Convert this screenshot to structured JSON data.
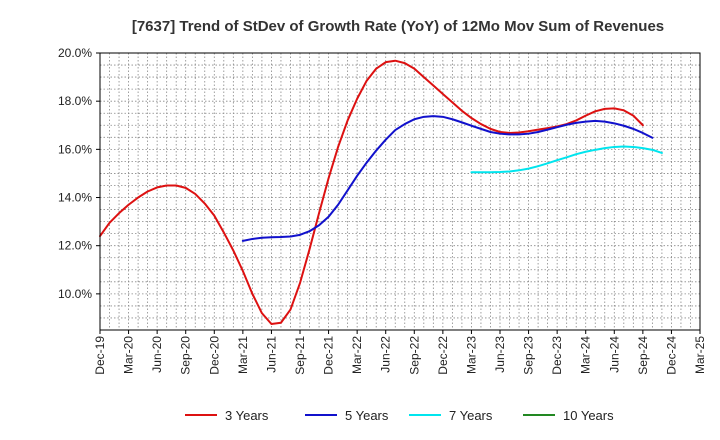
{
  "chart_data": {
    "type": "line",
    "title": "[7637]  Trend of StDev of Growth Rate (YoY) of 12Mo Mov Sum of Revenues",
    "xlabel": "",
    "ylabel": "",
    "ylim": [
      8.5,
      20.0
    ],
    "yticks": [
      10.0,
      12.0,
      14.0,
      16.0,
      18.0,
      20.0
    ],
    "ytick_labels": [
      "10.0%",
      "12.0%",
      "14.0%",
      "16.0%",
      "18.0%",
      "20.0%"
    ],
    "x_ticks": [
      "Dec-19",
      "Mar-20",
      "Jun-20",
      "Sep-20",
      "Dec-20",
      "Mar-21",
      "Jun-21",
      "Sep-21",
      "Dec-21",
      "Mar-22",
      "Jun-22",
      "Sep-22",
      "Dec-22",
      "Mar-23",
      "Jun-23",
      "Sep-23",
      "Dec-23",
      "Mar-24",
      "Jun-24",
      "Sep-24",
      "Dec-24",
      "Mar-25"
    ],
    "grid": true,
    "legend_position": "bottom",
    "series": [
      {
        "name": "3 Years",
        "color": "#dd1111",
        "start_index": 0,
        "values": [
          12.4,
          12.95,
          13.35,
          13.7,
          14.0,
          14.25,
          14.42,
          14.5,
          14.5,
          14.4,
          14.15,
          13.75,
          13.25,
          12.55,
          11.8,
          10.95,
          10.0,
          9.2,
          8.75,
          8.8,
          9.35,
          10.45,
          11.85,
          13.35,
          14.8,
          16.1,
          17.2,
          18.1,
          18.85,
          19.35,
          19.62,
          19.68,
          19.58,
          19.35,
          19.0,
          18.65,
          18.3,
          17.95,
          17.6,
          17.3,
          17.05,
          16.85,
          16.72,
          16.68,
          16.7,
          16.75,
          16.82,
          16.88,
          16.95,
          17.05,
          17.2,
          17.4,
          17.58,
          17.68,
          17.7,
          17.62,
          17.4,
          17.0
        ]
      },
      {
        "name": "5 Years",
        "color": "#1111cc",
        "start_index": 15,
        "values": [
          12.2,
          12.28,
          12.33,
          12.35,
          12.36,
          12.38,
          12.45,
          12.6,
          12.85,
          13.2,
          13.7,
          14.3,
          14.9,
          15.45,
          15.95,
          16.4,
          16.8,
          17.05,
          17.25,
          17.35,
          17.38,
          17.35,
          17.25,
          17.12,
          16.98,
          16.85,
          16.72,
          16.65,
          16.62,
          16.62,
          16.65,
          16.72,
          16.82,
          16.92,
          17.02,
          17.1,
          17.15,
          17.18,
          17.15,
          17.08,
          16.98,
          16.85,
          16.68,
          16.48
        ]
      },
      {
        "name": "7 Years",
        "color": "#00e5ee",
        "start_index": 39,
        "values": [
          15.05,
          15.05,
          15.05,
          15.06,
          15.08,
          15.13,
          15.2,
          15.3,
          15.42,
          15.55,
          15.67,
          15.8,
          15.9,
          15.98,
          16.05,
          16.1,
          16.12,
          16.1,
          16.05,
          15.98,
          15.85
        ]
      },
      {
        "name": "10 Years",
        "color": "#228822",
        "start_index": 0,
        "values": []
      }
    ]
  }
}
